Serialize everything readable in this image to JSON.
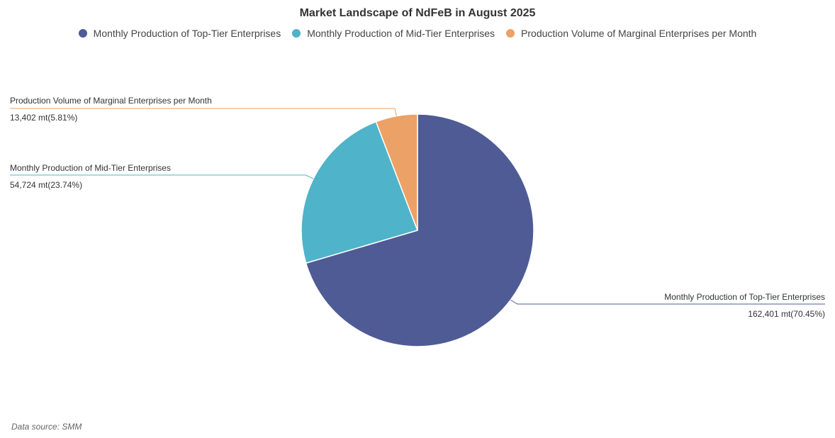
{
  "chart_data": {
    "type": "pie",
    "title": "Market Landscape of NdFeB in August 2025",
    "legend_position": "top-center",
    "unit": "mt",
    "slices": [
      {
        "name": "Monthly Production of Top-Tier Enterprises",
        "value": 162401,
        "percent": 70.45,
        "color": "#4f5b95",
        "value_text": "162,401 mt(70.45%)"
      },
      {
        "name": "Monthly Production of Mid-Tier Enterprises",
        "value": 54724,
        "percent": 23.74,
        "color": "#4fb3c9",
        "value_text": "54,724 mt(23.74%)"
      },
      {
        "name": "Production Volume of Marginal Enterprises per Month",
        "value": 13402,
        "percent": 5.81,
        "color": "#eca166",
        "value_text": "13,402 mt(5.81%)"
      }
    ]
  },
  "footer": {
    "source_text": "Data source:  SMM"
  }
}
